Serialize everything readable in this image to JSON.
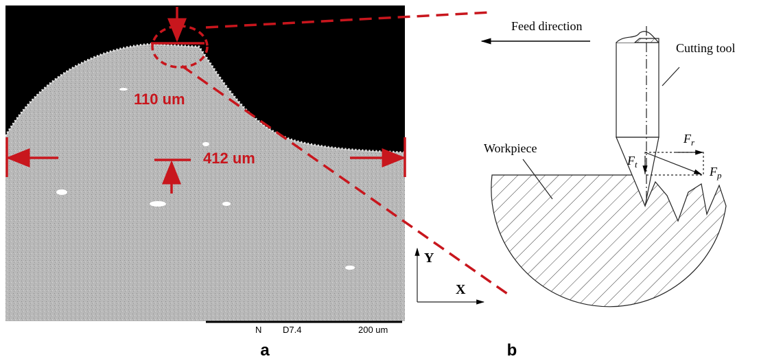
{
  "panel_a": {
    "label": "a",
    "annotations": {
      "height": "110 um",
      "width": "412 um"
    },
    "scale_bar": {
      "mode": "N",
      "distance": "D7.4",
      "length": "200 um"
    }
  },
  "panel_b": {
    "label": "b",
    "feed": "Feed direction",
    "tool": "Cutting tool",
    "workpiece": "Workpiece",
    "forces": {
      "radial": {
        "symbol": "F",
        "sub": "r"
      },
      "tangential": {
        "symbol": "F",
        "sub": "t"
      },
      "resultant": {
        "symbol": "F",
        "sub": "p"
      }
    },
    "axes": {
      "y": "Y",
      "x": "X"
    }
  }
}
